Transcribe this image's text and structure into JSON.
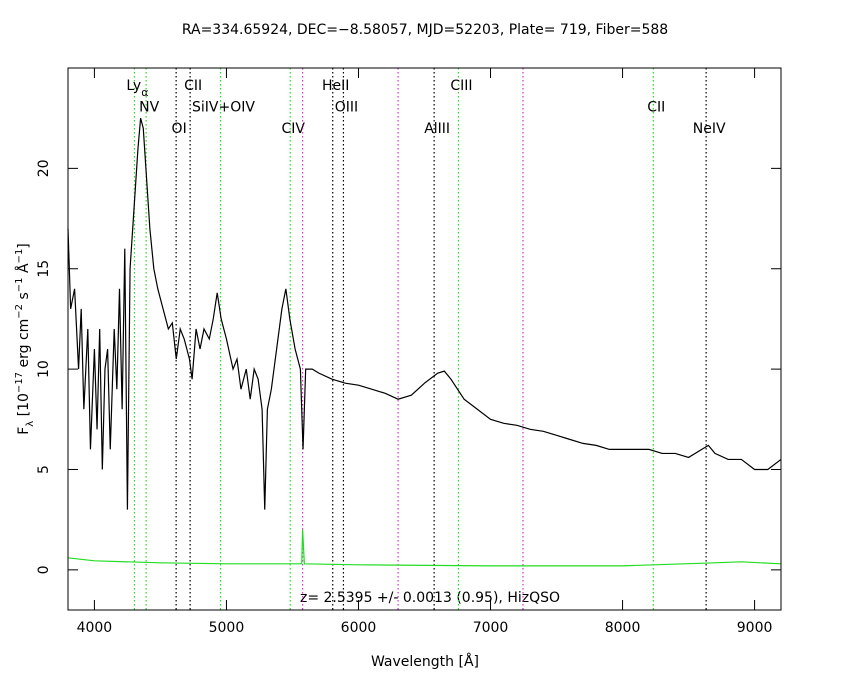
{
  "chart_data": {
    "type": "line",
    "title": "RA=334.65924, DEC=−8.58057, MJD=52203, Plate= 719, Fiber=588",
    "xlabel": "Wavelength [Å]",
    "ylabel": [
      {
        "text": "F"
      },
      {
        "text": "λ",
        "shift": "sub"
      },
      {
        "text": " [10"
      },
      {
        "text": "−17",
        "shift": "super"
      },
      {
        "text": " erg cm"
      },
      {
        "text": "−2",
        "shift": "super"
      },
      {
        "text": " s"
      },
      {
        "text": "−1",
        "shift": "super"
      },
      {
        "text": " Å"
      },
      {
        "text": "−1",
        "shift": "super"
      },
      {
        "text": "]"
      }
    ],
    "annotation": "z= 2.5395 +/- 0.0013 (0.95), HizQSO",
    "xlim": [
      3800,
      9200
    ],
    "ylim": [
      -2,
      25
    ],
    "xticks": [
      4000,
      5000,
      6000,
      7000,
      8000,
      9000
    ],
    "yticks": [
      0,
      5,
      10,
      15,
      20
    ],
    "series": [
      {
        "color": "#000000",
        "x": [
          3800,
          3820,
          3850,
          3880,
          3900,
          3920,
          3950,
          3970,
          4000,
          4020,
          4040,
          4060,
          4080,
          4100,
          4120,
          4150,
          4170,
          4190,
          4210,
          4230,
          4250,
          4270,
          4290,
          4310,
          4330,
          4350,
          4370,
          4390,
          4420,
          4450,
          4480,
          4520,
          4560,
          4590,
          4620,
          4650,
          4680,
          4720,
          4740,
          4770,
          4800,
          4830,
          4870,
          4900,
          4930,
          4960,
          5000,
          5050,
          5080,
          5110,
          5150,
          5180,
          5210,
          5240,
          5270,
          5290,
          5310,
          5340,
          5380,
          5420,
          5450,
          5480,
          5520,
          5560,
          5580,
          5600,
          5650,
          5700,
          5800,
          5900,
          6000,
          6100,
          6200,
          6300,
          6400,
          6500,
          6600,
          6650,
          6700,
          6750,
          6800,
          6900,
          7000,
          7100,
          7200,
          7300,
          7400,
          7500,
          7600,
          7700,
          7800,
          7900,
          8000,
          8100,
          8200,
          8300,
          8400,
          8500,
          8600,
          8650,
          8700,
          8800,
          8900,
          9000,
          9100,
          9200
        ],
        "values": [
          17,
          13,
          14,
          10,
          13,
          8,
          12,
          6,
          11,
          7,
          12,
          5,
          10,
          11,
          6,
          12,
          9,
          14,
          8,
          16,
          3,
          15,
          17,
          19,
          21,
          22.5,
          22,
          20,
          17,
          15,
          14,
          13,
          12,
          12.3,
          10.5,
          12,
          11.5,
          10.5,
          9.5,
          12,
          11,
          12,
          11.5,
          12.5,
          13.8,
          12.5,
          11.5,
          10,
          10.5,
          9,
          10,
          8.5,
          10,
          9.5,
          8,
          3,
          8,
          9,
          11,
          13,
          14,
          12.5,
          11,
          10,
          6,
          10,
          10,
          9.8,
          9.5,
          9.3,
          9.2,
          9,
          8.8,
          8.5,
          8.7,
          9.3,
          9.8,
          9.9,
          9.5,
          9,
          8.5,
          8,
          7.5,
          7.3,
          7.2,
          7,
          6.9,
          6.7,
          6.5,
          6.3,
          6.2,
          6,
          6,
          6,
          6,
          5.8,
          5.8,
          5.6,
          6,
          6.2,
          5.8,
          5.5,
          5.5,
          5,
          5,
          5.5
        ]
      },
      {
        "color": "#22dd22",
        "x": [
          3800,
          4000,
          4500,
          5000,
          5570,
          5577,
          5590,
          6000,
          7000,
          8000,
          8700,
          8900,
          9200
        ],
        "values": [
          0.6,
          0.45,
          0.35,
          0.3,
          0.3,
          2,
          0.3,
          0.25,
          0.2,
          0.2,
          0.35,
          0.4,
          0.3
        ]
      }
    ],
    "lines": [
      {
        "label": "Ly",
        "sub": "α",
        "wavelength": 4303,
        "color": "#22dd22"
      },
      {
        "label": "NV",
        "wavelength": 4392,
        "color": "#22dd22"
      },
      {
        "label": "OI",
        "wavelength": 4619,
        "color": "#000000"
      },
      {
        "label": "CII",
        "wavelength": 4725,
        "color": "#000000"
      },
      {
        "label": "SiIV+OIV",
        "wavelength": 4955,
        "color": "#22dd22"
      },
      {
        "label": "CIV",
        "wavelength": 5483,
        "color": "#22dd22"
      },
      {
        "label": "HeII",
        "wavelength": 5805,
        "color": "#000000"
      },
      {
        "label": "OIII",
        "wavelength": 5886,
        "color": "#000000"
      },
      {
        "label": "AlIII",
        "wavelength": 6573,
        "color": "#000000"
      },
      {
        "label": "CIII",
        "wavelength": 6757,
        "color": "#22dd22"
      },
      {
        "label": "CII",
        "wavelength": 8233,
        "color": "#22dd22"
      },
      {
        "label": "NeIV",
        "wavelength": 8633,
        "color": "#000000"
      },
      {
        "wavelength": 5577,
        "color": "#cc33cc"
      },
      {
        "wavelength": 6300,
        "color": "#cc33cc"
      },
      {
        "wavelength": 7246,
        "color": "#cc33cc"
      }
    ]
  }
}
